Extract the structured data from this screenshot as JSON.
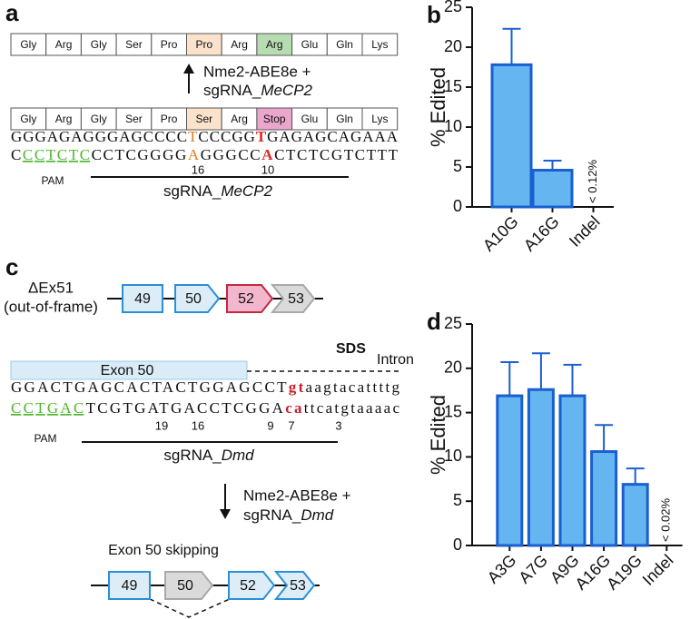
{
  "panel_a": {
    "label": "a",
    "protein_after": [
      "Gly",
      "Arg",
      "Gly",
      "Ser",
      "Pro",
      "Pro",
      "Arg",
      "Arg",
      "Glu",
      "Gln",
      "Lys"
    ],
    "editor": "Nme2-ABE8e +",
    "editor_guide": {
      "prefix": "sgRNA_",
      "gene": "MeCP2"
    },
    "protein_before": [
      "Gly",
      "Arg",
      "Gly",
      "Ser",
      "Pro",
      "Ser",
      "Arg",
      "Stop",
      "Glu",
      "Gln",
      "Lys"
    ],
    "top_strand": [
      "GGGAGAGGGAGCCCC",
      "T",
      "CCCGG",
      "T",
      "GAGAGCAGAAA"
    ],
    "bottom_strand": [
      "C",
      "CCTCTC",
      "CCTCGGGG",
      "A",
      "GGGCC",
      "A",
      "CTCTCGTCTTT"
    ],
    "positions": [
      16,
      10
    ],
    "pam": "PAM",
    "guide": {
      "prefix": "sgRNA_",
      "gene": "MeCP2"
    }
  },
  "panel_c": {
    "label": "c",
    "before_label": [
      "ΔEx51",
      "(out-of-frame)"
    ],
    "exons_before": [
      "49",
      "50",
      "52",
      "53"
    ],
    "sds": "SDS",
    "intron": "Intron",
    "exon_bar": "Exon 50",
    "top_strand": [
      "GGACTGAGCACTACTGGAGCCT",
      "gt",
      "aagtacattttg"
    ],
    "bottom_strand": [
      "CCTGAC",
      "TCGTGATGACCTCGGA",
      "ca",
      "ttcatgtaaaac"
    ],
    "positions": [
      19,
      16,
      9,
      7,
      3
    ],
    "pam": "PAM",
    "guide": {
      "prefix": "sgRNA_",
      "gene": "Dmd"
    },
    "editor": "Nme2-ABE8e +",
    "editor_guide": {
      "prefix": "sgRNA_",
      "gene": "Dmd"
    },
    "outcome": "Exon 50 skipping",
    "exons_after": [
      "49",
      "50",
      "52",
      "53"
    ]
  },
  "chart_data": [
    {
      "type": "bar",
      "panel_label": "b",
      "ylabel": "% Edited",
      "categories": [
        "A10G",
        "A16G",
        "Indel"
      ],
      "values": [
        17.8,
        4.6,
        null
      ],
      "errors": [
        4.5,
        1.2,
        null
      ],
      "annotation": "< 0.12%",
      "color": "#64b5f0",
      "ylim": [
        0,
        25
      ],
      "yticks": [
        0,
        5,
        10,
        15,
        20,
        25
      ]
    },
    {
      "type": "bar",
      "panel_label": "d",
      "ylabel": "% Edited",
      "categories": [
        "A3G",
        "A7G",
        "A9G",
        "A16G",
        "A19G",
        "Indel"
      ],
      "values": [
        16.9,
        17.6,
        16.9,
        10.6,
        6.9,
        null
      ],
      "errors": [
        3.8,
        4.1,
        3.5,
        3.0,
        1.8,
        null
      ],
      "annotation": "< 0.02%",
      "color": "#64b5f0",
      "ylim": [
        0,
        25
      ],
      "yticks": [
        0,
        5,
        10,
        15,
        20,
        25
      ]
    }
  ]
}
